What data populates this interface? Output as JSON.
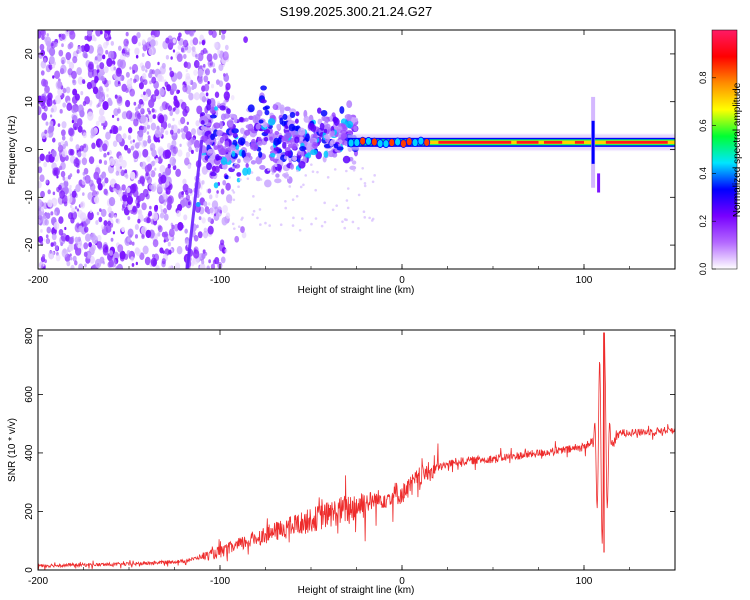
{
  "title": "S199.2025.300.21.24.G27",
  "chart_data": [
    {
      "type": "heatmap",
      "name": "spectrogram",
      "xlabel": "Height of straight line (km)",
      "ylabel": "Frequency (Hz)",
      "xlim": [
        -200,
        150
      ],
      "ylim": [
        -25,
        25
      ],
      "xticks": [
        -200,
        -100,
        0,
        100
      ],
      "yticks": [
        -20,
        -10,
        0,
        10,
        20
      ],
      "colorbar": {
        "label": "Normalized spectral amplitude",
        "range": [
          0,
          1
        ],
        "ticks": [
          "0.0",
          "0.2",
          "0.4",
          "0.6",
          "0.8"
        ],
        "tick_values": [
          0,
          0.2,
          0.4,
          0.6,
          0.8
        ],
        "colors": [
          "#ffffff",
          "#b469ff",
          "#7800ff",
          "#0000ff",
          "#00e6ff",
          "#00ff32",
          "#ffff00",
          "#ff8c00",
          "#ff0000",
          "#ff1a66"
        ]
      },
      "features": {
        "noise_region_km": [
          -200,
          -105
        ],
        "transition_region_km": [
          -110,
          -25
        ],
        "tone_frequency_hz": 1.5,
        "tone_start_km": -30,
        "spike_km": 105,
        "spike_freq_range_hz": [
          -8,
          11
        ],
        "chirp": {
          "x_from_km": -110,
          "x_to_km": -118,
          "f_from_hz": 2,
          "f_to_hz": -25
        }
      }
    },
    {
      "type": "line",
      "name": "snr",
      "xlabel": "Height of straight line (km)",
      "ylabel": "SNR (10 * v/v)",
      "xlim": [
        -200,
        150
      ],
      "ylim": [
        0,
        820
      ],
      "xticks": [
        -200,
        -100,
        0,
        100
      ],
      "yticks": [
        0,
        200,
        400,
        600,
        800
      ],
      "color": "#ee2c2c",
      "x": [
        -200,
        -150,
        -120,
        -100,
        -80,
        -60,
        -40,
        -20,
        0,
        10,
        20,
        30,
        50,
        70,
        90,
        100,
        105,
        108,
        110,
        112,
        114,
        120,
        130,
        150
      ],
      "y": [
        15,
        20,
        30,
        60,
        110,
        150,
        190,
        230,
        260,
        320,
        350,
        370,
        380,
        395,
        410,
        420,
        440,
        380,
        700,
        150,
        420,
        470,
        470,
        480
      ],
      "peak": {
        "x": 111,
        "y": 810
      },
      "trough": {
        "x": 111,
        "y": 60
      }
    }
  ]
}
